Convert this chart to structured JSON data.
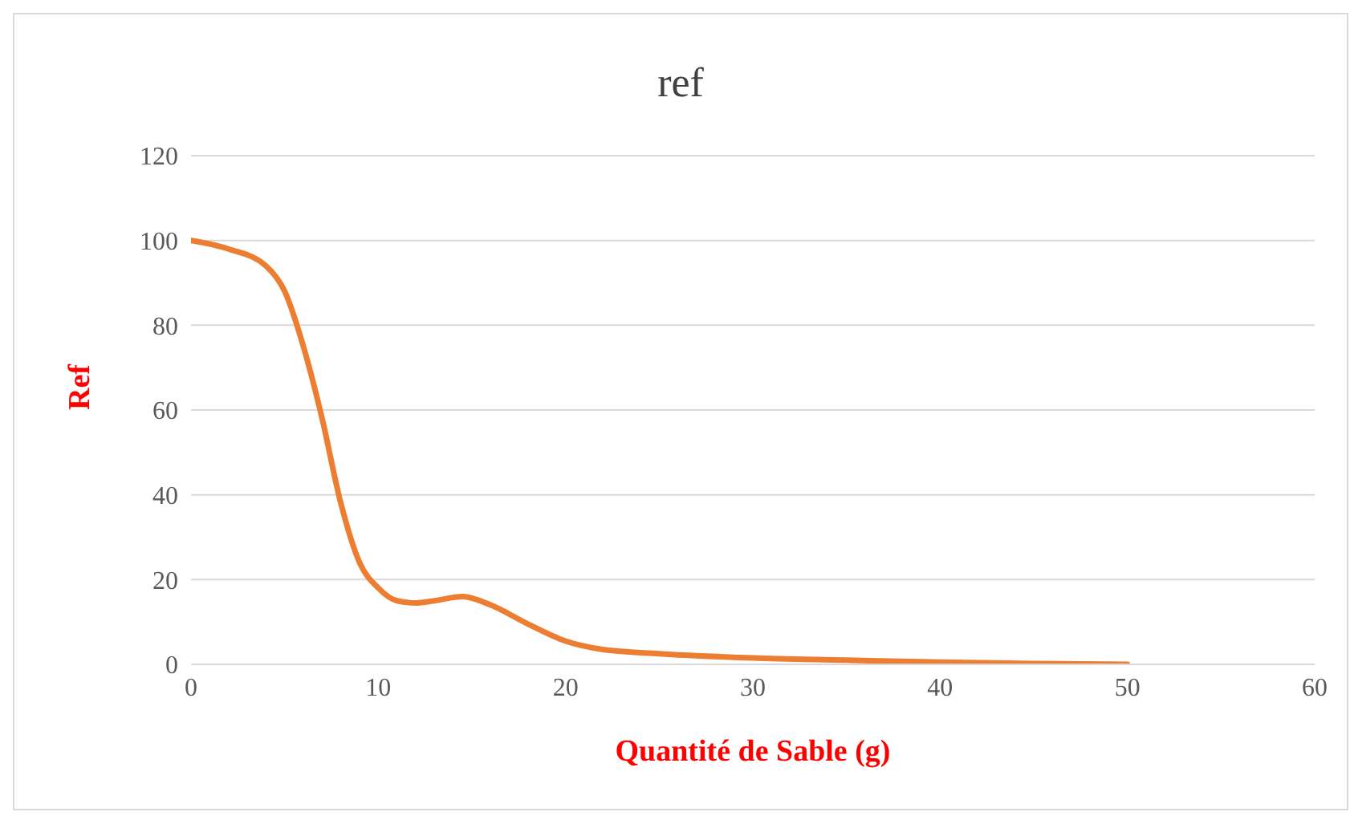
{
  "chart_data": {
    "type": "line",
    "title": "ref",
    "xlabel": "Quantité de Sable (g)",
    "ylabel": "Ref",
    "grid": "y",
    "marker": "none",
    "line_style": "solid",
    "xlim": [
      0,
      60
    ],
    "xticks": [
      0,
      10,
      20,
      30,
      40,
      50,
      60
    ],
    "ylim": [
      0,
      120
    ],
    "yticks": [
      0,
      20,
      40,
      60,
      80,
      100,
      120
    ],
    "series": [
      {
        "color": "#ed7d31",
        "x": [
          0,
          2,
          4,
          5,
          6,
          7,
          8,
          9,
          10,
          11,
          12,
          13,
          14.5,
          16,
          18,
          20,
          22,
          25,
          30,
          35,
          40,
          45,
          50
        ],
        "values": [
          100,
          98,
          94,
          88,
          75,
          58,
          38,
          24,
          18,
          15,
          14.5,
          15,
          16,
          14,
          9.5,
          5.5,
          3.5,
          2.5,
          1.5,
          1,
          0.5,
          0.2,
          0
        ]
      }
    ]
  }
}
